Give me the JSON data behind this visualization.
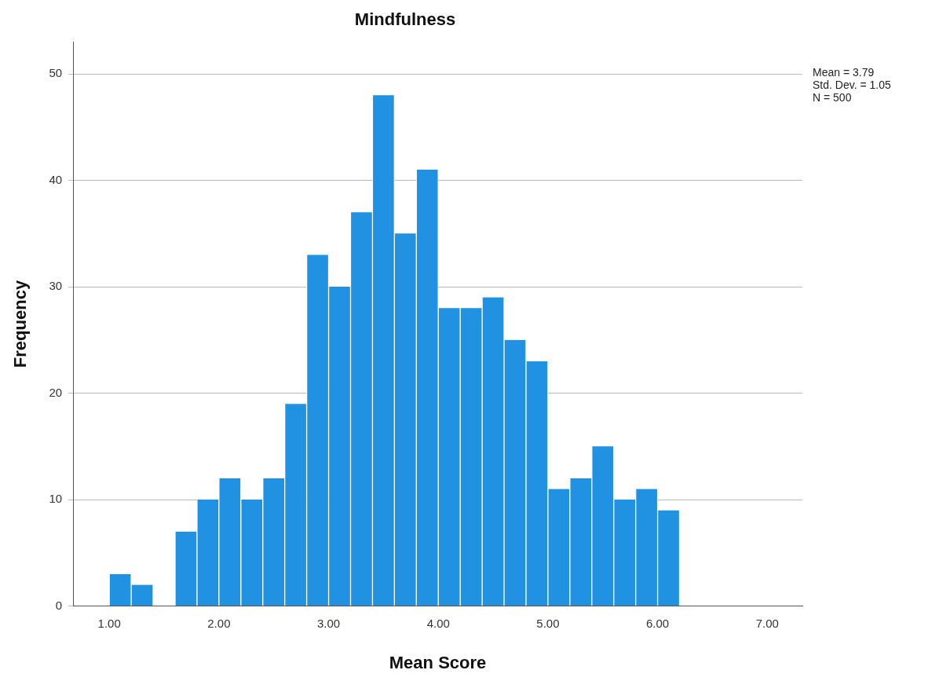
{
  "chart_data": {
    "type": "histogram",
    "title": "Mindfulness",
    "xlabel": "Mean Score",
    "ylabel": "Frequency",
    "bins": [
      1.0,
      1.2,
      1.4,
      1.6,
      1.8,
      2.0,
      2.2,
      2.4,
      2.6,
      2.8,
      3.0,
      3.2,
      3.4,
      3.6,
      3.8,
      4.0,
      4.2,
      4.4,
      4.6,
      4.8,
      5.0,
      5.2,
      5.4,
      5.6,
      5.8,
      6.0,
      6.2
    ],
    "values": [
      3,
      2,
      0,
      7,
      10,
      12,
      10,
      12,
      19,
      33,
      30,
      37,
      48,
      35,
      41,
      28,
      28,
      29,
      25,
      23,
      11,
      12,
      15,
      10,
      11,
      9
    ],
    "color": "#2191e2",
    "xlim": [
      0.67,
      7.32
    ],
    "xticks": [
      {
        "value": 1,
        "label": "1.00"
      },
      {
        "value": 2,
        "label": "2.00"
      },
      {
        "value": 3,
        "label": "3.00"
      },
      {
        "value": 4,
        "label": "4.00"
      },
      {
        "value": 5,
        "label": "5.00"
      },
      {
        "value": 6,
        "label": "6.00"
      },
      {
        "value": 7,
        "label": "7.00"
      }
    ],
    "ylim": [
      0,
      53
    ],
    "yticks": [
      0,
      10,
      20,
      30,
      40,
      50
    ],
    "grid": "y",
    "legend": false,
    "annotations": [
      "Mean = 3.79",
      "Std. Dev. = 1.05",
      "N = 500"
    ]
  }
}
